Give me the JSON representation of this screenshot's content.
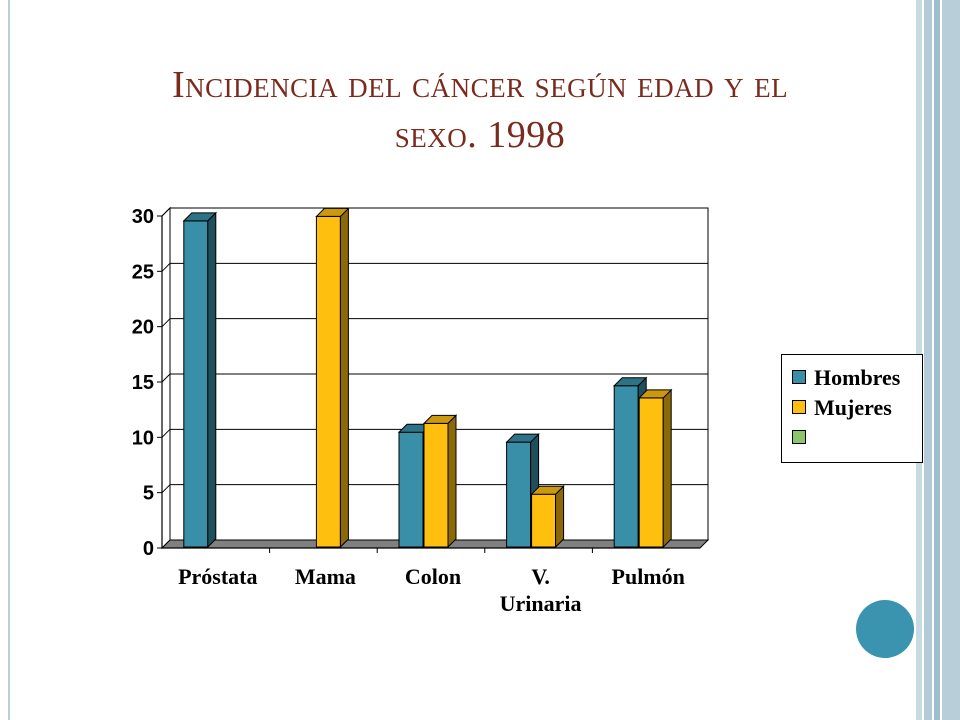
{
  "title_line1": "Incidencia del cáncer según edad y el",
  "title_line2": "sexo. 1998",
  "chart_data": {
    "type": "bar",
    "categories": [
      "Próstata",
      "Mama",
      "Colon",
      "V. Urinaria",
      "Pulmón"
    ],
    "series": [
      {
        "name": "Hombres",
        "color": "#3a8fa8",
        "values": [
          29.2,
          null,
          10.1,
          9.2,
          14.3
        ]
      },
      {
        "name": "Mujeres",
        "color": "#ffbf0f",
        "values": [
          null,
          29.6,
          10.9,
          4.5,
          13.2
        ]
      },
      {
        "name": "",
        "color": "#8cc66a",
        "values": [
          null,
          null,
          null,
          null,
          null
        ]
      }
    ],
    "ylim": [
      0,
      30
    ],
    "yticks": [
      0,
      5,
      10,
      15,
      20,
      25,
      30
    ],
    "grid": true,
    "legend_position": "right"
  }
}
